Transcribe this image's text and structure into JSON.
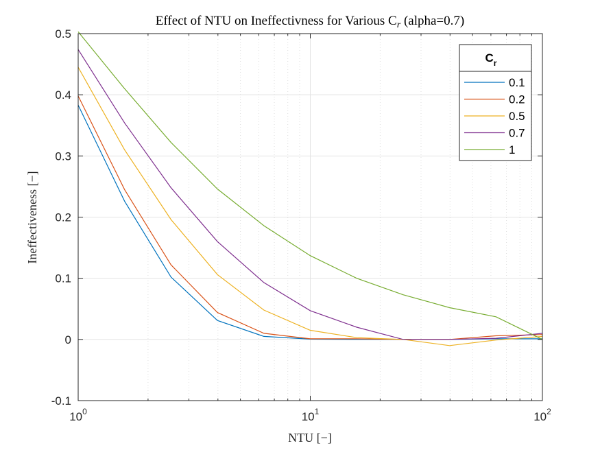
{
  "chart_data": {
    "type": "line",
    "title": "Effect of NTU on Ineffectivness for Various C",
    "title_sub": "r",
    "title_tail": " (alpha=0.7)",
    "xlabel": "NTU [−]",
    "ylabel": "Ineffectiveness [−]",
    "xscale": "log",
    "xlim": [
      1,
      100
    ],
    "ylim": [
      -0.1,
      0.5
    ],
    "x_ticks": [
      {
        "value": 1,
        "base": "10",
        "exp": "0"
      },
      {
        "value": 10,
        "base": "10",
        "exp": "1"
      },
      {
        "value": 100,
        "base": "10",
        "exp": "2"
      }
    ],
    "y_ticks": [
      {
        "value": -0.1,
        "label": "-0.1"
      },
      {
        "value": 0,
        "label": "0"
      },
      {
        "value": 0.1,
        "label": "0.1"
      },
      {
        "value": 0.2,
        "label": "0.2"
      },
      {
        "value": 0.3,
        "label": "0.3"
      },
      {
        "value": 0.4,
        "label": "0.4"
      },
      {
        "value": 0.5,
        "label": "0.5"
      }
    ],
    "grid": true,
    "minor_grid_x": true,
    "legend": {
      "title": "C",
      "title_sub": "r",
      "placement": "top-right"
    },
    "x": [
      1,
      1.585,
      2.512,
      3.981,
      6.31,
      10,
      15.85,
      25.12,
      39.81,
      63.1,
      100
    ],
    "series": [
      {
        "name": "0.1",
        "color": "#0072BD",
        "values": [
          0.383,
          0.226,
          0.102,
          0.031,
          0.005,
          0.0005,
          0.0,
          0.0,
          0.0,
          0.001,
          0.001
        ]
      },
      {
        "name": "0.2",
        "color": "#D95319",
        "values": [
          0.398,
          0.245,
          0.122,
          0.044,
          0.01,
          0.001,
          0.001,
          0.0,
          0.0,
          0.006,
          0.008
        ]
      },
      {
        "name": "0.5",
        "color": "#EDB120",
        "values": [
          0.445,
          0.31,
          0.196,
          0.106,
          0.048,
          0.015,
          0.003,
          0.0,
          -0.01,
          -0.001,
          0.005
        ]
      },
      {
        "name": "0.7",
        "color": "#7E2F8E",
        "values": [
          0.474,
          0.354,
          0.248,
          0.16,
          0.093,
          0.047,
          0.02,
          0.0,
          0.0,
          0.002,
          0.01
        ]
      },
      {
        "name": " 1",
        "color": "#77AC30",
        "values": [
          0.503,
          0.41,
          0.322,
          0.246,
          0.186,
          0.137,
          0.1,
          0.073,
          0.052,
          0.037,
          0.0
        ]
      }
    ]
  }
}
